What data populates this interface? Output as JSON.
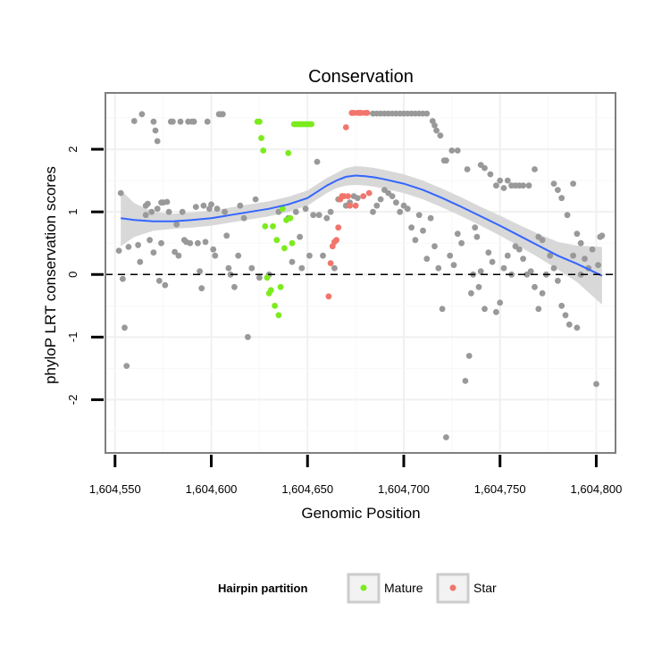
{
  "chart_data": {
    "type": "scatter",
    "title": "Conservation",
    "xlabel": "Genomic Position",
    "ylabel": "phyloP LRT conservation scores",
    "xlim": [
      1604545,
      1604810
    ],
    "ylim": [
      -2.85,
      2.9
    ],
    "xticks": [
      1604550,
      1604600,
      1604650,
      1604700,
      1604750,
      1604800
    ],
    "xtick_labels": [
      "1,604,550",
      "1,604,600",
      "1,604,650",
      "1,604,700",
      "1,604,750",
      "1,604,800"
    ],
    "yticks": [
      -2,
      -1,
      0,
      1,
      2
    ],
    "ytick_labels": [
      "-2",
      "-1",
      "0",
      "1",
      "2"
    ],
    "reference_line": {
      "y": 0,
      "style": "dashed"
    },
    "grid": true,
    "legend": {
      "title": "Hairpin partition",
      "position": "bottom",
      "entries": [
        {
          "label": "Mature",
          "color": "#7CEB1E"
        },
        {
          "label": "Star",
          "color": "#F2756C"
        }
      ]
    },
    "colors": {
      "other": "#999999",
      "mature": "#7CEB1E",
      "star": "#F2756C",
      "smooth": "#3366FF",
      "band": "#d4d4d4"
    },
    "series": [
      {
        "name": "Other",
        "points": [
          [
            1604553,
            1.3
          ],
          [
            1604554,
            -0.07
          ],
          [
            1604555,
            -0.85
          ],
          [
            1604556,
            -1.46
          ],
          [
            1604552,
            0.38
          ],
          [
            1604557,
            0.44
          ],
          [
            1604560,
            2.45
          ],
          [
            1604562,
            0.47
          ],
          [
            1604563,
            0.2
          ],
          [
            1604564,
            2.56
          ],
          [
            1604566,
            1.1
          ],
          [
            1604567,
            1.13
          ],
          [
            1604569,
            1.0
          ],
          [
            1604570,
            2.44
          ],
          [
            1604571,
            2.3
          ],
          [
            1604572,
            2.13
          ],
          [
            1604573,
            -0.1
          ],
          [
            1604574,
            1.15
          ],
          [
            1604575,
            1.15
          ],
          [
            1604576,
            -0.17
          ],
          [
            1604577,
            1.16
          ],
          [
            1604578,
            1.0
          ],
          [
            1604579,
            2.44
          ],
          [
            1604580,
            2.44
          ],
          [
            1604581,
            0.36
          ],
          [
            1604582,
            0.8
          ],
          [
            1604583,
            0.3
          ],
          [
            1604584,
            2.44
          ],
          [
            1604585,
            1.0
          ],
          [
            1604586,
            0.55
          ],
          [
            1604587,
            0.52
          ],
          [
            1604588,
            2.44
          ],
          [
            1604589,
            0.5
          ],
          [
            1604590,
            2.44
          ],
          [
            1604591,
            2.44
          ],
          [
            1604592,
            1.08
          ],
          [
            1604593,
            0.5
          ],
          [
            1604594,
            0.05
          ],
          [
            1604595,
            -0.22
          ],
          [
            1604596,
            1.1
          ],
          [
            1604597,
            0.52
          ],
          [
            1604598,
            2.44
          ],
          [
            1604599,
            1.05
          ],
          [
            1604600,
            1.12
          ],
          [
            1604601,
            0.4
          ],
          [
            1604602,
            0.3
          ],
          [
            1604603,
            1.05
          ],
          [
            1604604,
            2.56
          ],
          [
            1604605,
            2.56
          ],
          [
            1604606,
            2.56
          ],
          [
            1604607,
            1.0
          ],
          [
            1604608,
            0.62
          ],
          [
            1604609,
            0.1
          ],
          [
            1604610,
            0.0
          ],
          [
            1604612,
            -0.2
          ],
          [
            1604614,
            0.3
          ],
          [
            1604615,
            1.1
          ],
          [
            1604617,
            0.9
          ],
          [
            1604619,
            -1.0
          ],
          [
            1604621,
            0.1
          ],
          [
            1604623,
            1.2
          ],
          [
            1604625,
            -0.05
          ],
          [
            1604630,
            0.0
          ],
          [
            1604635,
            1.0
          ],
          [
            1604640,
            0.9
          ],
          [
            1604642,
            0.2
          ],
          [
            1604644,
            1.0
          ],
          [
            1604646,
            0.6
          ],
          [
            1604647,
            0.1
          ],
          [
            1604649,
            1.05
          ],
          [
            1604651,
            0.3
          ],
          [
            1604653,
            0.95
          ],
          [
            1604655,
            1.8
          ],
          [
            1604656,
            0.95
          ],
          [
            1604658,
            0.3
          ],
          [
            1604660,
            0.9
          ],
          [
            1604662,
            1.0
          ],
          [
            1604664,
            0.1
          ],
          [
            1604666,
            1.2
          ],
          [
            1604668,
            1.25
          ],
          [
            1604670,
            1.1
          ],
          [
            1604672,
            1.15
          ],
          [
            1604674,
            1.25
          ],
          [
            1604676,
            1.22
          ],
          [
            1604684,
            2.57
          ],
          [
            1604686,
            2.57
          ],
          [
            1604688,
            2.57
          ],
          [
            1604690,
            2.57
          ],
          [
            1604692,
            2.57
          ],
          [
            1604694,
            2.57
          ],
          [
            1604696,
            2.57
          ],
          [
            1604698,
            2.57
          ],
          [
            1604700,
            2.57
          ],
          [
            1604702,
            2.57
          ],
          [
            1604704,
            2.57
          ],
          [
            1604706,
            2.57
          ],
          [
            1604708,
            2.57
          ],
          [
            1604710,
            2.57
          ],
          [
            1604712,
            2.57
          ],
          [
            1604715,
            2.45
          ],
          [
            1604716,
            2.38
          ],
          [
            1604717,
            2.3
          ],
          [
            1604719,
            2.22
          ],
          [
            1604721,
            1.82
          ],
          [
            1604722,
            1.82
          ],
          [
            1604725,
            1.98
          ],
          [
            1604728,
            1.98
          ],
          [
            1604733,
            1.68
          ],
          [
            1604740,
            1.75
          ],
          [
            1604742,
            1.7
          ],
          [
            1604745,
            1.6
          ],
          [
            1604748,
            1.42
          ],
          [
            1604750,
            1.5
          ],
          [
            1604752,
            1.38
          ],
          [
            1604754,
            1.5
          ],
          [
            1604756,
            1.42
          ],
          [
            1604758,
            1.42
          ],
          [
            1604760,
            1.42
          ],
          [
            1604762,
            1.42
          ],
          [
            1604765,
            1.42
          ],
          [
            1604768,
            1.68
          ],
          [
            1604770,
            0.6
          ],
          [
            1604772,
            0.55
          ],
          [
            1604778,
            1.45
          ],
          [
            1604780,
            1.35
          ],
          [
            1604782,
            1.22
          ],
          [
            1604785,
            0.95
          ],
          [
            1604788,
            1.45
          ],
          [
            1604790,
            0.65
          ],
          [
            1604792,
            0.5
          ],
          [
            1604684,
            1.0
          ],
          [
            1604686,
            1.1
          ],
          [
            1604688,
            1.2
          ],
          [
            1604690,
            1.35
          ],
          [
            1604692,
            1.3
          ],
          [
            1604694,
            1.25
          ],
          [
            1604696,
            1.15
          ],
          [
            1604698,
            1.0
          ],
          [
            1604700,
            1.1
          ],
          [
            1604702,
            1.05
          ],
          [
            1604704,
            0.75
          ],
          [
            1604706,
            0.55
          ],
          [
            1604708,
            0.95
          ],
          [
            1604710,
            0.7
          ],
          [
            1604712,
            0.25
          ],
          [
            1604714,
            0.9
          ],
          [
            1604716,
            0.45
          ],
          [
            1604718,
            0.1
          ],
          [
            1604720,
            -0.55
          ],
          [
            1604722,
            -2.6
          ],
          [
            1604724,
            0.3
          ],
          [
            1604726,
            0.15
          ],
          [
            1604728,
            0.65
          ],
          [
            1604730,
            0.5
          ],
          [
            1604732,
            -1.7
          ],
          [
            1604734,
            -1.3
          ],
          [
            1604735,
            -0.3
          ],
          [
            1604736,
            0.0
          ],
          [
            1604737,
            0.75
          ],
          [
            1604738,
            0.6
          ],
          [
            1604739,
            -0.2
          ],
          [
            1604740,
            0.05
          ],
          [
            1604742,
            -0.55
          ],
          [
            1604744,
            0.35
          ],
          [
            1604746,
            0.2
          ],
          [
            1604748,
            -0.6
          ],
          [
            1604750,
            -0.45
          ],
          [
            1604752,
            0.1
          ],
          [
            1604754,
            0.3
          ],
          [
            1604756,
            0.0
          ],
          [
            1604758,
            0.45
          ],
          [
            1604760,
            0.4
          ],
          [
            1604762,
            0.25
          ],
          [
            1604764,
            0.0
          ],
          [
            1604766,
            0.05
          ],
          [
            1604768,
            -0.2
          ],
          [
            1604770,
            -0.55
          ],
          [
            1604772,
            -0.3
          ],
          [
            1604774,
            0.0
          ],
          [
            1604776,
            0.3
          ],
          [
            1604778,
            0.1
          ],
          [
            1604780,
            -0.1
          ],
          [
            1604782,
            -0.5
          ],
          [
            1604784,
            -0.65
          ],
          [
            1604786,
            -0.8
          ],
          [
            1604788,
            0.3
          ],
          [
            1604790,
            -0.85
          ],
          [
            1604792,
            0.0
          ],
          [
            1604794,
            0.25
          ],
          [
            1604796,
            0.1
          ],
          [
            1604798,
            0.4
          ],
          [
            1604800,
            -1.75
          ],
          [
            1604801,
            0.15
          ],
          [
            1604802,
            0.6
          ],
          [
            1604803,
            0.62
          ],
          [
            1604566,
            0.95
          ],
          [
            1604568,
            0.55
          ],
          [
            1604570,
            0.35
          ],
          [
            1604572,
            1.05
          ],
          [
            1604574,
            0.5
          ]
        ]
      },
      {
        "name": "Mature",
        "points": [
          [
            1604624,
            2.44
          ],
          [
            1604625,
            2.44
          ],
          [
            1604626,
            2.18
          ],
          [
            1604627,
            1.98
          ],
          [
            1604628,
            0.77
          ],
          [
            1604629,
            -0.05
          ],
          [
            1604630,
            -0.3
          ],
          [
            1604631,
            -0.25
          ],
          [
            1604632,
            0.77
          ],
          [
            1604633,
            -0.5
          ],
          [
            1604634,
            0.55
          ],
          [
            1604635,
            -0.65
          ],
          [
            1604636,
            -0.2
          ],
          [
            1604637,
            1.05
          ],
          [
            1604638,
            0.42
          ],
          [
            1604639,
            0.87
          ],
          [
            1604640,
            1.94
          ],
          [
            1604641,
            0.9
          ],
          [
            1604642,
            0.5
          ],
          [
            1604643,
            2.4
          ],
          [
            1604644,
            2.4
          ],
          [
            1604645,
            2.4
          ],
          [
            1604646,
            2.4
          ],
          [
            1604647,
            2.4
          ],
          [
            1604648,
            2.4
          ],
          [
            1604649,
            2.4
          ],
          [
            1604650,
            2.4
          ],
          [
            1604651,
            2.4
          ],
          [
            1604652,
            2.4
          ]
        ]
      },
      {
        "name": "Star",
        "points": [
          [
            1604661,
            -0.35
          ],
          [
            1604662,
            0.18
          ],
          [
            1604663,
            0.45
          ],
          [
            1604664,
            0.52
          ],
          [
            1604665,
            0.55
          ],
          [
            1604666,
            0.75
          ],
          [
            1604667,
            1.2
          ],
          [
            1604668,
            1.25
          ],
          [
            1604669,
            1.25
          ],
          [
            1604670,
            2.35
          ],
          [
            1604671,
            1.25
          ],
          [
            1604672,
            1.1
          ],
          [
            1604673,
            2.58
          ],
          [
            1604674,
            2.58
          ],
          [
            1604675,
            1.1
          ],
          [
            1604676,
            2.58
          ],
          [
            1604677,
            2.58
          ],
          [
            1604678,
            2.58
          ],
          [
            1604679,
            1.25
          ],
          [
            1604680,
            2.58
          ],
          [
            1604681,
            2.58
          ],
          [
            1604682,
            1.3
          ]
        ]
      }
    ],
    "smooth": {
      "x": [
        1604553,
        1604560,
        1604570,
        1604580,
        1604590,
        1604600,
        1604610,
        1604620,
        1604630,
        1604640,
        1604650,
        1604655,
        1604660,
        1604665,
        1604670,
        1604675,
        1604680,
        1604685,
        1604690,
        1604700,
        1604710,
        1604720,
        1604730,
        1604740,
        1604750,
        1604760,
        1604770,
        1604780,
        1604790,
        1604803
      ],
      "y": [
        0.9,
        0.87,
        0.85,
        0.85,
        0.87,
        0.9,
        0.95,
        1.0,
        1.05,
        1.12,
        1.22,
        1.32,
        1.42,
        1.5,
        1.56,
        1.58,
        1.57,
        1.55,
        1.52,
        1.45,
        1.35,
        1.22,
        1.08,
        0.93,
        0.78,
        0.62,
        0.46,
        0.3,
        0.17,
        -0.02
      ],
      "lower": [
        0.45,
        0.6,
        0.7,
        0.73,
        0.75,
        0.78,
        0.83,
        0.88,
        0.93,
        1.0,
        1.1,
        1.2,
        1.3,
        1.38,
        1.42,
        1.43,
        1.42,
        1.4,
        1.37,
        1.3,
        1.2,
        1.07,
        0.93,
        0.78,
        0.62,
        0.45,
        0.27,
        0.08,
        -0.12,
        -0.48
      ],
      "upper": [
        1.35,
        1.14,
        1.0,
        0.97,
        0.99,
        1.02,
        1.07,
        1.12,
        1.17,
        1.24,
        1.34,
        1.44,
        1.54,
        1.62,
        1.7,
        1.73,
        1.72,
        1.7,
        1.67,
        1.6,
        1.5,
        1.37,
        1.23,
        1.08,
        0.94,
        0.79,
        0.65,
        0.52,
        0.46,
        0.44
      ]
    }
  }
}
